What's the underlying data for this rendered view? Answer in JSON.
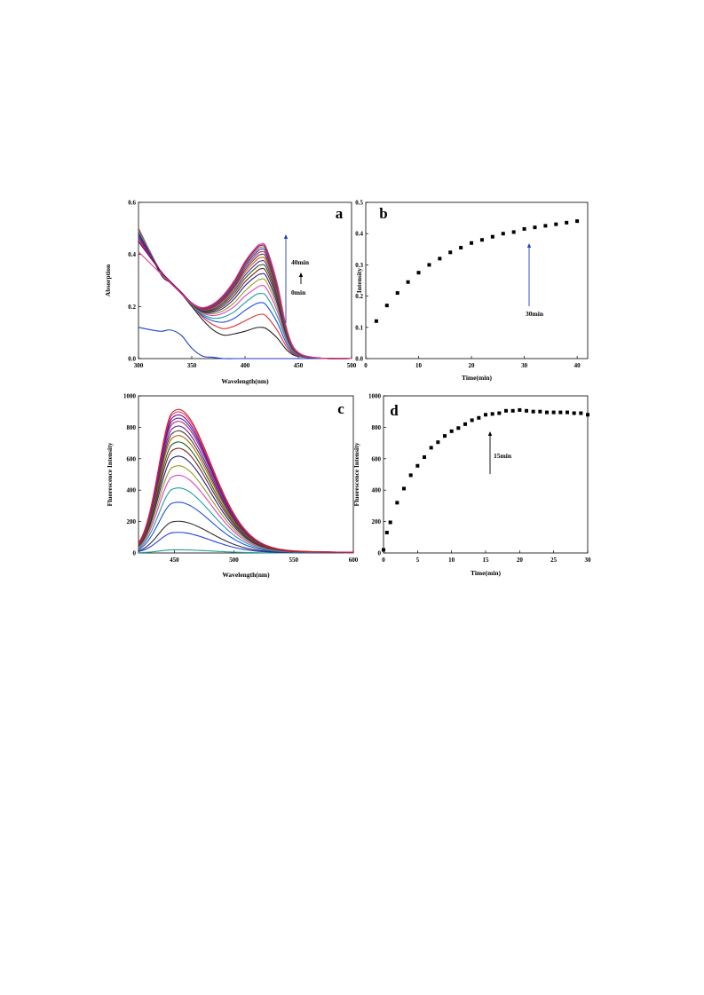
{
  "chart_data": [
    {
      "panel": "a",
      "type": "line",
      "xlabel": "Wavelength(nm)",
      "ylabel": "Absorption",
      "xlim": [
        300,
        500
      ],
      "ylim": [
        0.0,
        0.6
      ],
      "xticks": [
        "300",
        "350",
        "400",
        "450",
        "500"
      ],
      "yticks": [
        "0.0",
        "0.2",
        "0.4",
        "0.6"
      ],
      "grid": false,
      "annotations": [
        "40min",
        "0min"
      ],
      "x": [
        300,
        320,
        330,
        340,
        350,
        360,
        370,
        380,
        390,
        400,
        410,
        415,
        420,
        430,
        440,
        450,
        470,
        500
      ],
      "series": [
        {
          "color": "#1f3fbf",
          "values": [
            0.12,
            0.105,
            0.11,
            0.09,
            0.04,
            0.01,
            0.005,
            0.0,
            0.0,
            0.0,
            0.0,
            0.0,
            0.0,
            0.0,
            0.0,
            0.0,
            0.0,
            0.0
          ]
        },
        {
          "color": "#222222",
          "values": [
            0.5,
            0.33,
            0.29,
            0.25,
            0.2,
            0.15,
            0.11,
            0.09,
            0.095,
            0.105,
            0.118,
            0.12,
            0.115,
            0.08,
            0.03,
            0.008,
            0.002,
            0.0
          ]
        },
        {
          "color": "#e03030",
          "values": [
            0.5,
            0.34,
            0.295,
            0.255,
            0.205,
            0.16,
            0.13,
            0.115,
            0.125,
            0.145,
            0.165,
            0.17,
            0.163,
            0.11,
            0.04,
            0.01,
            0.002,
            0.0
          ]
        },
        {
          "color": "#2050e0",
          "values": [
            0.49,
            0.34,
            0.295,
            0.255,
            0.205,
            0.165,
            0.145,
            0.14,
            0.155,
            0.185,
            0.21,
            0.215,
            0.205,
            0.14,
            0.05,
            0.012,
            0.002,
            0.0
          ]
        },
        {
          "color": "#20a0a0",
          "values": [
            0.49,
            0.34,
            0.295,
            0.255,
            0.206,
            0.17,
            0.155,
            0.16,
            0.18,
            0.215,
            0.245,
            0.25,
            0.24,
            0.165,
            0.06,
            0.014,
            0.002,
            0.0
          ]
        },
        {
          "color": "#e040c0",
          "values": [
            0.48,
            0.34,
            0.295,
            0.255,
            0.207,
            0.175,
            0.165,
            0.175,
            0.2,
            0.24,
            0.27,
            0.28,
            0.27,
            0.185,
            0.065,
            0.015,
            0.002,
            0.0
          ]
        },
        {
          "color": "#9a9a20",
          "values": [
            0.48,
            0.34,
            0.295,
            0.255,
            0.208,
            0.178,
            0.172,
            0.185,
            0.215,
            0.26,
            0.295,
            0.305,
            0.295,
            0.2,
            0.07,
            0.016,
            0.002,
            0.0
          ]
        },
        {
          "color": "#202080",
          "values": [
            0.48,
            0.34,
            0.295,
            0.255,
            0.209,
            0.18,
            0.178,
            0.195,
            0.23,
            0.28,
            0.315,
            0.325,
            0.315,
            0.215,
            0.075,
            0.017,
            0.002,
            0.0
          ]
        },
        {
          "color": "#802020",
          "values": [
            0.47,
            0.34,
            0.295,
            0.255,
            0.21,
            0.182,
            0.183,
            0.203,
            0.242,
            0.295,
            0.332,
            0.345,
            0.333,
            0.228,
            0.08,
            0.018,
            0.002,
            0.0
          ]
        },
        {
          "color": "#206020",
          "values": [
            0.47,
            0.34,
            0.295,
            0.255,
            0.21,
            0.184,
            0.187,
            0.21,
            0.252,
            0.308,
            0.348,
            0.36,
            0.348,
            0.238,
            0.083,
            0.019,
            0.002,
            0.0
          ]
        },
        {
          "color": "#6020a0",
          "values": [
            0.47,
            0.34,
            0.295,
            0.255,
            0.211,
            0.186,
            0.191,
            0.216,
            0.261,
            0.32,
            0.362,
            0.375,
            0.362,
            0.248,
            0.087,
            0.02,
            0.002,
            0.0
          ]
        },
        {
          "color": "#c06000",
          "values": [
            0.46,
            0.34,
            0.295,
            0.255,
            0.211,
            0.188,
            0.195,
            0.222,
            0.269,
            0.331,
            0.375,
            0.388,
            0.374,
            0.257,
            0.09,
            0.021,
            0.002,
            0.0
          ]
        },
        {
          "color": "#404040",
          "values": [
            0.46,
            0.34,
            0.295,
            0.255,
            0.212,
            0.19,
            0.198,
            0.227,
            0.276,
            0.34,
            0.386,
            0.4,
            0.386,
            0.265,
            0.093,
            0.022,
            0.002,
            0.0
          ]
        },
        {
          "color": "#c02060",
          "values": [
            0.46,
            0.34,
            0.295,
            0.255,
            0.212,
            0.191,
            0.201,
            0.232,
            0.282,
            0.348,
            0.396,
            0.41,
            0.396,
            0.272,
            0.095,
            0.022,
            0.002,
            0.0
          ]
        },
        {
          "color": "#3030c0",
          "values": [
            0.45,
            0.34,
            0.295,
            0.255,
            0.213,
            0.193,
            0.204,
            0.236,
            0.288,
            0.356,
            0.405,
            0.42,
            0.405,
            0.278,
            0.097,
            0.023,
            0.002,
            0.0
          ]
        },
        {
          "color": "#808020",
          "values": [
            0.45,
            0.34,
            0.295,
            0.255,
            0.213,
            0.194,
            0.206,
            0.24,
            0.293,
            0.362,
            0.413,
            0.428,
            0.413,
            0.284,
            0.099,
            0.023,
            0.002,
            0.0
          ]
        },
        {
          "color": "#800080",
          "values": [
            0.45,
            0.34,
            0.295,
            0.255,
            0.214,
            0.195,
            0.208,
            0.243,
            0.297,
            0.368,
            0.42,
            0.435,
            0.42,
            0.289,
            0.101,
            0.024,
            0.002,
            0.0
          ]
        },
        {
          "color": "#e04080",
          "values": [
            0.41,
            0.33,
            0.29,
            0.25,
            0.212,
            0.196,
            0.21,
            0.246,
            0.301,
            0.373,
            0.426,
            0.44,
            0.426,
            0.293,
            0.102,
            0.024,
            0.002,
            0.0
          ]
        }
      ]
    },
    {
      "panel": "b",
      "type": "scatter",
      "xlabel": "Time(min)",
      "ylabel": "Intensity",
      "xlim": [
        0,
        42
      ],
      "ylim": [
        0.0,
        0.5
      ],
      "xticks": [
        "0",
        "10",
        "20",
        "30",
        "40"
      ],
      "yticks": [
        "0.0",
        "0.1",
        "0.2",
        "0.3",
        "0.4",
        "0.5"
      ],
      "grid": false,
      "annotations": [
        "30min"
      ],
      "x": [
        2,
        4,
        6,
        8,
        10,
        12,
        14,
        16,
        18,
        20,
        22,
        24,
        26,
        28,
        30,
        32,
        34,
        36,
        38,
        40
      ],
      "values": [
        0.12,
        0.17,
        0.21,
        0.245,
        0.275,
        0.3,
        0.32,
        0.34,
        0.355,
        0.37,
        0.38,
        0.39,
        0.4,
        0.405,
        0.415,
        0.42,
        0.425,
        0.43,
        0.435,
        0.44
      ]
    },
    {
      "panel": "c",
      "type": "line",
      "xlabel": "Wavelength(nm)",
      "ylabel": "Fluorescence Intensity",
      "xlim": [
        420,
        600
      ],
      "ylim": [
        0,
        1000
      ],
      "xticks": [
        "450",
        "500",
        "550",
        "600"
      ],
      "yticks": [
        "0",
        "200",
        "400",
        "600",
        "800",
        "1000"
      ],
      "grid": false,
      "peak_wavelength": 450,
      "series": [
        {
          "color": "#20a090",
          "peak": 20
        },
        {
          "color": "#2040e0",
          "peak": 130
        },
        {
          "color": "#303030",
          "peak": 200
        },
        {
          "color": "#2050e0",
          "peak": 320
        },
        {
          "color": "#20a0a0",
          "peak": 410
        },
        {
          "color": "#e040c0",
          "peak": 490
        },
        {
          "color": "#9a9a20",
          "peak": 550
        },
        {
          "color": "#202080",
          "peak": 610
        },
        {
          "color": "#802020",
          "peak": 660
        },
        {
          "color": "#206020",
          "peak": 700
        },
        {
          "color": "#c06000",
          "peak": 740
        },
        {
          "color": "#404040",
          "peak": 770
        },
        {
          "color": "#6020a0",
          "peak": 800
        },
        {
          "color": "#c02060",
          "peak": 830
        },
        {
          "color": "#3030c0",
          "peak": 850
        },
        {
          "color": "#800080",
          "peak": 870
        },
        {
          "color": "#e04080",
          "peak": 890
        },
        {
          "color": "#d02020",
          "peak": 905
        }
      ]
    },
    {
      "panel": "d",
      "type": "scatter",
      "xlabel": "Time(min)",
      "ylabel": "Fluorescence Intensity",
      "xlim": [
        0,
        30
      ],
      "ylim": [
        0,
        1000
      ],
      "xticks": [
        "0",
        "5",
        "10",
        "15",
        "20",
        "25",
        "30"
      ],
      "yticks": [
        "0",
        "200",
        "400",
        "600",
        "800",
        "1000"
      ],
      "grid": false,
      "annotations": [
        "15min"
      ],
      "x": [
        0,
        0.5,
        1,
        2,
        3,
        4,
        5,
        6,
        7,
        8,
        9,
        10,
        11,
        12,
        13,
        14,
        15,
        16,
        17,
        18,
        19,
        20,
        21,
        22,
        23,
        24,
        25,
        26,
        27,
        28,
        29,
        30
      ],
      "values": [
        20,
        130,
        195,
        320,
        410,
        495,
        555,
        610,
        670,
        705,
        745,
        775,
        795,
        820,
        845,
        860,
        880,
        885,
        890,
        905,
        905,
        910,
        905,
        900,
        900,
        895,
        895,
        895,
        895,
        890,
        890,
        880
      ]
    }
  ]
}
